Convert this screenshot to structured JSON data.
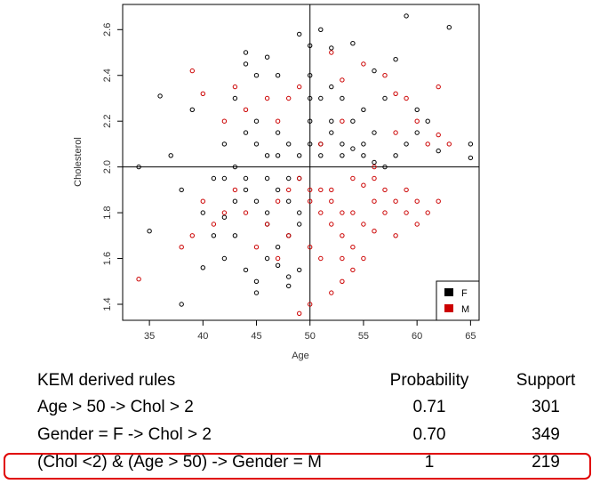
{
  "chart_data": {
    "type": "scatter",
    "title": "",
    "xlabel": "Age",
    "ylabel": "Cholesterol",
    "xlim": [
      32.5,
      65.8
    ],
    "ylim": [
      1.33,
      2.71
    ],
    "x_ticks": [
      35,
      40,
      45,
      50,
      55,
      60,
      65
    ],
    "y_ticks": [
      1.4,
      1.6,
      1.8,
      2.0,
      2.2,
      2.4,
      2.6
    ],
    "reference_lines": {
      "x": 50,
      "y": 2.0
    },
    "legend": {
      "position": "bottom-right",
      "entries": [
        {
          "label": "F",
          "color": "#000000"
        },
        {
          "label": "M",
          "color": "#cc0000"
        }
      ]
    },
    "series": [
      {
        "name": "F",
        "color": "#000000",
        "marker": "open-circle",
        "points": [
          [
            38,
            1.4
          ],
          [
            40,
            1.56
          ],
          [
            42,
            1.6
          ],
          [
            43,
            1.7
          ],
          [
            44,
            1.55
          ],
          [
            45,
            1.45
          ],
          [
            45,
            1.5
          ],
          [
            46,
            1.6
          ],
          [
            47,
            1.57
          ],
          [
            48,
            1.48
          ],
          [
            48,
            1.52
          ],
          [
            49,
            1.55
          ],
          [
            36,
            2.31
          ],
          [
            37,
            2.05
          ],
          [
            39,
            2.25
          ],
          [
            41,
            1.95
          ],
          [
            42,
            2.1
          ],
          [
            43,
            2.3
          ],
          [
            44,
            2.45
          ],
          [
            44,
            2.5
          ],
          [
            45,
            2.4
          ],
          [
            46,
            2.48
          ],
          [
            47,
            2.4
          ],
          [
            49,
            2.58
          ],
          [
            50,
            2.53
          ],
          [
            51,
            2.6
          ],
          [
            52,
            2.52
          ],
          [
            54,
            2.54
          ],
          [
            56,
            2.42
          ],
          [
            57,
            2.3
          ],
          [
            58,
            2.47
          ],
          [
            59,
            2.66
          ],
          [
            63,
            2.61
          ],
          [
            61,
            2.2
          ],
          [
            62,
            2.07
          ],
          [
            65,
            2.1
          ],
          [
            65,
            2.04
          ],
          [
            34,
            2.0
          ],
          [
            35,
            1.72
          ],
          [
            38,
            1.9
          ],
          [
            40,
            1.8
          ],
          [
            41,
            1.7
          ],
          [
            42,
            1.78
          ],
          [
            43,
            1.85
          ],
          [
            44,
            1.95
          ],
          [
            46,
            1.75
          ],
          [
            47,
            1.9
          ],
          [
            48,
            1.85
          ],
          [
            49,
            1.8
          ],
          [
            51,
            2.05
          ],
          [
            51,
            2.1
          ],
          [
            52,
            2.2
          ],
          [
            52,
            2.15
          ],
          [
            53,
            2.1
          ],
          [
            53,
            2.3
          ],
          [
            54,
            2.2
          ],
          [
            55,
            2.25
          ],
          [
            55,
            2.1
          ],
          [
            56,
            2.15
          ],
          [
            57,
            2.0
          ],
          [
            58,
            2.05
          ],
          [
            59,
            2.1
          ],
          [
            60,
            2.15
          ],
          [
            60,
            2.25
          ],
          [
            50,
            2.1
          ],
          [
            50,
            2.2
          ],
          [
            50,
            2.3
          ],
          [
            50,
            2.4
          ],
          [
            51,
            2.3
          ],
          [
            52,
            2.35
          ],
          [
            53,
            2.05
          ],
          [
            54,
            2.08
          ],
          [
            55,
            2.05
          ],
          [
            56,
            2.02
          ],
          [
            45,
            2.1
          ],
          [
            45,
            2.2
          ],
          [
            46,
            1.95
          ],
          [
            46,
            2.05
          ],
          [
            47,
            2.05
          ],
          [
            47,
            2.15
          ],
          [
            48,
            2.1
          ],
          [
            48,
            1.95
          ],
          [
            49,
            2.05
          ],
          [
            49,
            1.95
          ],
          [
            44,
            2.15
          ],
          [
            44,
            1.9
          ],
          [
            43,
            2.0
          ],
          [
            42,
            1.95
          ],
          [
            45,
            1.85
          ],
          [
            46,
            1.8
          ],
          [
            47,
            1.65
          ],
          [
            48,
            1.7
          ],
          [
            49,
            1.75
          ]
        ]
      },
      {
        "name": "M",
        "color": "#cc0000",
        "marker": "open-circle",
        "points": [
          [
            34,
            1.51
          ],
          [
            39,
            2.42
          ],
          [
            40,
            2.32
          ],
          [
            42,
            2.2
          ],
          [
            43,
            2.35
          ],
          [
            44,
            2.25
          ],
          [
            46,
            2.3
          ],
          [
            47,
            2.2
          ],
          [
            48,
            2.3
          ],
          [
            49,
            2.35
          ],
          [
            52,
            2.5
          ],
          [
            53,
            2.38
          ],
          [
            55,
            2.45
          ],
          [
            57,
            2.4
          ],
          [
            58,
            2.32
          ],
          [
            59,
            2.3
          ],
          [
            60,
            2.2
          ],
          [
            61,
            2.1
          ],
          [
            62,
            2.35
          ],
          [
            62,
            2.14
          ],
          [
            63,
            2.1
          ],
          [
            50,
            1.4
          ],
          [
            49,
            1.36
          ],
          [
            50,
            1.9
          ],
          [
            50,
            1.85
          ],
          [
            51,
            1.9
          ],
          [
            51,
            1.8
          ],
          [
            52,
            1.9
          ],
          [
            52,
            1.85
          ],
          [
            52,
            1.75
          ],
          [
            53,
            1.8
          ],
          [
            53,
            1.7
          ],
          [
            53,
            1.6
          ],
          [
            54,
            1.8
          ],
          [
            54,
            1.65
          ],
          [
            54,
            1.55
          ],
          [
            55,
            1.75
          ],
          [
            55,
            1.6
          ],
          [
            56,
            1.85
          ],
          [
            56,
            1.72
          ],
          [
            57,
            1.9
          ],
          [
            57,
            1.8
          ],
          [
            58,
            1.7
          ],
          [
            58,
            1.85
          ],
          [
            59,
            1.9
          ],
          [
            59,
            1.8
          ],
          [
            60,
            1.85
          ],
          [
            60,
            1.75
          ],
          [
            61,
            1.8
          ],
          [
            62,
            1.85
          ],
          [
            53,
            1.5
          ],
          [
            52,
            1.45
          ],
          [
            51,
            1.6
          ],
          [
            50,
            1.65
          ],
          [
            48,
            1.7
          ],
          [
            47,
            1.6
          ],
          [
            46,
            1.75
          ],
          [
            45,
            1.65
          ],
          [
            44,
            1.8
          ],
          [
            43,
            1.9
          ],
          [
            42,
            1.8
          ],
          [
            41,
            1.75
          ],
          [
            40,
            1.85
          ],
          [
            39,
            1.7
          ],
          [
            38,
            1.65
          ],
          [
            48,
            1.9
          ],
          [
            47,
            1.85
          ],
          [
            49,
            1.95
          ],
          [
            56,
            1.95
          ],
          [
            55,
            1.92
          ],
          [
            54,
            1.95
          ],
          [
            51,
            2.1
          ],
          [
            53,
            2.2
          ],
          [
            56,
            2.0
          ],
          [
            58,
            2.15
          ]
        ]
      }
    ]
  },
  "rules_table": {
    "headers": {
      "rule": "KEM derived rules",
      "probability": "Probability",
      "support": "Support"
    },
    "rows": [
      {
        "rule": "Age > 50 -> Chol > 2",
        "probability": "0.71",
        "support": "301"
      },
      {
        "rule": "Gender = F -> Chol > 2",
        "probability": "0.70",
        "support": "349"
      },
      {
        "rule": "(Chol <2) & (Age > 50) -> Gender = M",
        "probability": "1",
        "support": "219",
        "highlighted": true
      }
    ]
  },
  "colors": {
    "female": "#000000",
    "male": "#cc0000",
    "highlight": "#e00000"
  }
}
